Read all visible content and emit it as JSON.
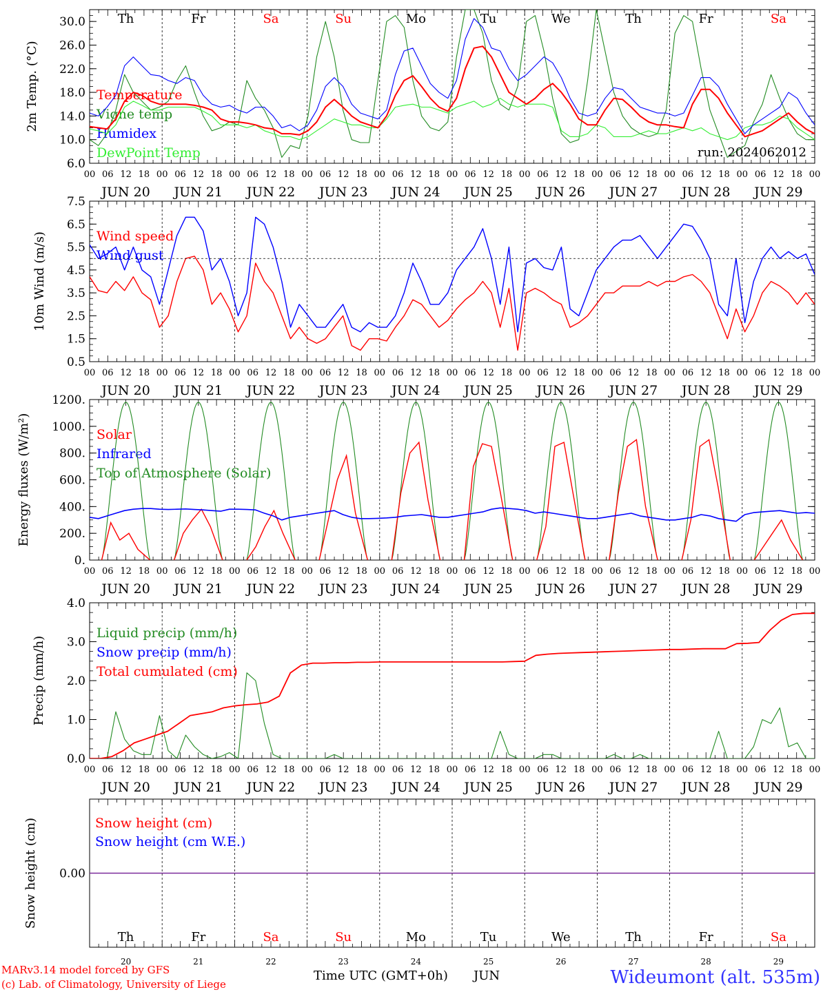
{
  "chart_data": [
    {
      "type": "line",
      "ylabel": "2m Temp. (°C)",
      "ylim": [
        6.0,
        32.0
      ],
      "yticks": [
        "6.0",
        "10.0",
        "14.0",
        "18.0",
        "22.0",
        "26.0",
        "30.0"
      ],
      "legend_placement": "left",
      "annotation": "run: 2024062012",
      "series": [
        {
          "name": "Temperature",
          "color": "#ff0000",
          "values": [
            12.2,
            12.0,
            11.8,
            13.5,
            16.5,
            18.0,
            17.5,
            16.5,
            16.0,
            16.0,
            16.0,
            16.0,
            15.8,
            15.5,
            15.0,
            13.5,
            13.0,
            13.0,
            12.8,
            12.5,
            12.0,
            11.8,
            11.0,
            11.0,
            10.8,
            11.5,
            13.0,
            15.5,
            16.8,
            15.5,
            14.0,
            13.0,
            12.5,
            12.0,
            14.0,
            17.5,
            20.0,
            20.8,
            19.0,
            17.0,
            15.5,
            14.8,
            17.0,
            22.0,
            25.5,
            25.8,
            24.0,
            21.0,
            18.0,
            17.0,
            16.0,
            17.0,
            18.5,
            19.5,
            18.0,
            16.0,
            13.5,
            12.5,
            12.5,
            15.0,
            17.0,
            16.8,
            15.5,
            14.0,
            13.0,
            12.5,
            12.5,
            12.2,
            12.0,
            16.0,
            18.5,
            18.5,
            17.0,
            14.5,
            12.5,
            10.5,
            11.0,
            11.5,
            12.5,
            13.5,
            14.5,
            13.0,
            11.8,
            11.0
          ]
        },
        {
          "name": "Vigne temp",
          "color": "#228b22",
          "values": [
            10.0,
            9.0,
            11.0,
            15.0,
            21.0,
            18.0,
            16.5,
            15.0,
            15.5,
            16.5,
            20.0,
            22.5,
            18.0,
            14.0,
            11.5,
            12.0,
            13.0,
            12.5,
            20.0,
            17.0,
            15.0,
            12.0,
            7.0,
            9.0,
            8.5,
            14.0,
            24.0,
            30.0,
            24.0,
            15.0,
            10.0,
            9.5,
            9.5,
            20.0,
            30.0,
            31.0,
            29.0,
            20.0,
            14.0,
            12.0,
            11.5,
            13.0,
            24.0,
            32.0,
            32.0,
            28.0,
            20.0,
            16.0,
            15.0,
            19.0,
            30.0,
            31.0,
            25.0,
            17.0,
            11.0,
            9.5,
            10.0,
            20.0,
            32.0,
            25.0,
            18.0,
            14.0,
            12.0,
            11.0,
            10.5,
            11.0,
            15.0,
            28.0,
            31.0,
            30.0,
            22.0,
            15.0,
            11.0,
            7.0,
            8.0,
            9.0,
            13.0,
            16.0,
            21.0,
            17.0,
            13.5,
            11.0,
            10.0,
            10.0
          ]
        },
        {
          "name": "Humidex",
          "color": "#0000ff",
          "values": [
            14.5,
            14.0,
            15.5,
            17.5,
            22.5,
            24.0,
            22.5,
            21.0,
            20.8,
            20.0,
            19.5,
            20.5,
            20.0,
            17.5,
            16.0,
            15.5,
            15.8,
            15.0,
            14.5,
            15.5,
            15.5,
            14.0,
            12.0,
            12.5,
            11.5,
            12.5,
            15.0,
            19.0,
            20.5,
            19.0,
            16.0,
            14.5,
            14.0,
            13.5,
            15.0,
            21.0,
            25.0,
            25.5,
            22.5,
            19.5,
            18.0,
            17.0,
            20.0,
            27.0,
            30.5,
            29.0,
            25.5,
            25.0,
            22.0,
            20.0,
            21.0,
            22.5,
            24.0,
            23.0,
            20.5,
            17.0,
            14.5,
            14.0,
            14.5,
            17.0,
            18.8,
            18.5,
            17.0,
            15.5,
            15.0,
            14.5,
            14.5,
            14.0,
            14.5,
            17.5,
            20.5,
            20.5,
            19.0,
            16.0,
            13.5,
            11.0,
            12.5,
            13.5,
            14.5,
            15.5,
            18.0,
            17.0,
            14.5,
            12.5
          ]
        },
        {
          "name": "DewPoint Temp",
          "color": "#33ee33",
          "values": [
            11.8,
            11.5,
            11.0,
            12.5,
            15.5,
            16.5,
            15.8,
            15.0,
            15.0,
            15.5,
            15.5,
            15.5,
            15.5,
            14.8,
            14.0,
            12.5,
            12.5,
            12.5,
            12.0,
            12.5,
            11.5,
            11.0,
            10.5,
            10.5,
            10.0,
            10.5,
            11.5,
            12.5,
            13.5,
            13.0,
            12.5,
            12.5,
            12.0,
            12.0,
            13.5,
            15.5,
            15.8,
            16.0,
            15.5,
            15.5,
            15.0,
            14.5,
            15.5,
            16.0,
            16.5,
            15.5,
            16.0,
            17.0,
            16.0,
            15.5,
            16.0,
            16.0,
            16.0,
            15.5,
            11.5,
            10.5,
            10.5,
            11.0,
            12.5,
            12.0,
            10.5,
            10.5,
            10.5,
            11.0,
            11.5,
            11.0,
            11.0,
            11.5,
            12.0,
            11.5,
            12.0,
            11.0,
            10.5,
            10.0,
            10.5,
            12.0,
            12.5,
            12.5,
            13.0,
            14.0,
            13.5,
            12.0,
            11.0,
            10.0
          ]
        }
      ]
    },
    {
      "type": "line",
      "ylabel": "10m Wind (m/s)",
      "ylim": [
        0.5,
        7.5
      ],
      "yticks": [
        "0.5",
        "1.5",
        "2.5",
        "3.5",
        "4.5",
        "5.5",
        "6.5",
        "7.5"
      ],
      "reference_line": 5.0,
      "legend_placement": "left",
      "series": [
        {
          "name": "Wind speed",
          "color": "#ff0000",
          "values": [
            4.2,
            3.6,
            3.5,
            4.0,
            3.6,
            4.2,
            3.5,
            3.2,
            2.0,
            2.5,
            4.0,
            5.0,
            5.1,
            4.5,
            3.0,
            3.5,
            2.8,
            1.8,
            2.5,
            4.8,
            4.0,
            3.5,
            2.5,
            1.5,
            2.0,
            1.5,
            1.3,
            1.5,
            2.0,
            2.5,
            1.2,
            1.0,
            1.5,
            1.5,
            1.4,
            2.0,
            2.5,
            3.2,
            3.0,
            2.5,
            2.0,
            2.3,
            2.8,
            3.2,
            3.5,
            4.0,
            3.5,
            2.0,
            3.7,
            1.0,
            3.5,
            3.7,
            3.5,
            3.2,
            3.0,
            2.0,
            2.2,
            2.5,
            3.0,
            3.5,
            3.5,
            3.8,
            3.8,
            3.8,
            4.0,
            3.8,
            4.0,
            4.0,
            4.2,
            4.3,
            4.0,
            3.5,
            2.5,
            1.5,
            2.8,
            1.8,
            2.5,
            3.5,
            4.0,
            3.8,
            3.5,
            3.0,
            3.5,
            3.0
          ]
        },
        {
          "name": "Wind gust",
          "color": "#0000ff",
          "values": [
            5.6,
            5.0,
            5.2,
            5.5,
            4.5,
            5.5,
            4.5,
            4.2,
            3.0,
            4.5,
            6.0,
            6.8,
            6.8,
            6.2,
            4.5,
            5.0,
            4.0,
            2.5,
            3.5,
            6.8,
            6.5,
            5.5,
            4.0,
            2.0,
            3.0,
            2.5,
            2.0,
            2.0,
            2.5,
            3.0,
            2.0,
            1.8,
            2.2,
            2.0,
            2.0,
            2.5,
            3.5,
            4.8,
            4.0,
            3.0,
            3.0,
            3.5,
            4.5,
            5.0,
            5.5,
            6.3,
            5.0,
            3.0,
            5.5,
            1.8,
            4.8,
            5.0,
            4.6,
            4.5,
            5.5,
            2.8,
            2.5,
            3.5,
            4.5,
            5.0,
            5.5,
            5.8,
            5.8,
            6.0,
            5.5,
            5.0,
            5.5,
            6.0,
            6.5,
            6.4,
            5.8,
            5.0,
            3.0,
            2.5,
            5.0,
            2.2,
            4.0,
            5.0,
            5.5,
            5.0,
            5.3,
            5.0,
            5.2,
            4.3
          ]
        }
      ]
    },
    {
      "type": "line",
      "ylabel": "Energy fluxes (W/m²)",
      "ylim": [
        0,
        1200
      ],
      "yticks": [
        "0.",
        "200.",
        "400.",
        "600.",
        "800.",
        "1000.",
        "1200."
      ],
      "legend_placement": "left",
      "series": [
        {
          "name": "Solar",
          "color": "#ff0000",
          "days": [
            [
              0,
              280,
              150,
              200,
              80,
              0
            ],
            [
              0,
              200,
              300,
              380,
              250,
              0
            ],
            [
              0,
              100,
              250,
              370,
              200,
              0
            ],
            [
              0,
              300,
              600,
              780,
              350,
              0
            ],
            [
              0,
              500,
              800,
              880,
              450,
              0
            ],
            [
              0,
              700,
              870,
              850,
              500,
              0
            ],
            [
              0,
              250,
              850,
              880,
              500,
              0
            ],
            [
              0,
              500,
              850,
              900,
              400,
              0
            ],
            [
              0,
              300,
              850,
              900,
              550,
              0
            ],
            [
              0,
              100,
              200,
              300,
              150,
              0
            ]
          ]
        },
        {
          "name": "Infrared",
          "color": "#0000ff",
          "values": [
            320,
            310,
            330,
            350,
            370,
            380,
            385,
            385,
            380,
            378,
            380,
            382,
            378,
            375,
            370,
            365,
            380,
            380,
            378,
            375,
            350,
            330,
            300,
            320,
            330,
            340,
            350,
            360,
            370,
            340,
            320,
            310,
            310,
            312,
            315,
            320,
            330,
            335,
            340,
            330,
            320,
            320,
            330,
            340,
            350,
            360,
            380,
            390,
            385,
            380,
            370,
            350,
            360,
            350,
            340,
            330,
            320,
            310,
            310,
            320,
            330,
            340,
            350,
            330,
            320,
            310,
            300,
            300,
            310,
            320,
            340,
            330,
            310,
            300,
            290,
            340,
            355,
            360,
            365,
            370,
            360,
            350,
            355,
            350
          ]
        },
        {
          "name": "Top of Atmosphere (Solar)",
          "color": "#228b22",
          "peak": 1180
        }
      ]
    },
    {
      "type": "line",
      "ylabel": "Precip (mm/h)",
      "ylim": [
        0.0,
        4.0
      ],
      "yticks": [
        "0.0",
        "1.0",
        "2.0",
        "3.0",
        "4.0"
      ],
      "legend_placement": "left",
      "series": [
        {
          "name": "Liquid precip (mm/h)",
          "color": "#228b22",
          "values": [
            0,
            0,
            0,
            1.2,
            0.5,
            0.2,
            0.1,
            0.1,
            1.1,
            0.2,
            0,
            0.6,
            0.3,
            0.1,
            0,
            0.05,
            0.15,
            0,
            2.2,
            2.0,
            0.9,
            0.1,
            0,
            0,
            0,
            0,
            0,
            0,
            0.1,
            0,
            0,
            0,
            0,
            0,
            0,
            0,
            0,
            0,
            0,
            0,
            0,
            0,
            0,
            0,
            0,
            0,
            0,
            0.7,
            0.1,
            0,
            0,
            0,
            0.1,
            0.1,
            0,
            0,
            0,
            0,
            0,
            0,
            0.1,
            0,
            0,
            0.1,
            0,
            0,
            0,
            0,
            0,
            0,
            0,
            0,
            0.7,
            0,
            0,
            0,
            0.3,
            1.0,
            0.9,
            1.3,
            0.3,
            0.4,
            0,
            0
          ]
        },
        {
          "name": "Snow precip (mm/h)",
          "color": "#0000ff",
          "values": []
        },
        {
          "name": "Total cumulated (cm)",
          "color": "#ff0000",
          "values": [
            0,
            0,
            0.05,
            0.2,
            0.4,
            0.5,
            0.6,
            0.7,
            0.9,
            1.1,
            1.15,
            1.2,
            1.3,
            1.35,
            1.38,
            1.4,
            1.45,
            1.6,
            2.2,
            2.4,
            2.45,
            2.45,
            2.46,
            2.46,
            2.47,
            2.47,
            2.48,
            2.48,
            2.48,
            2.48,
            2.48,
            2.48,
            2.48,
            2.48,
            2.48,
            2.48,
            2.48,
            2.48,
            2.49,
            2.5,
            2.65,
            2.68,
            2.7,
            2.71,
            2.72,
            2.73,
            2.74,
            2.75,
            2.76,
            2.77,
            2.78,
            2.79,
            2.8,
            2.8,
            2.81,
            2.82,
            2.82,
            2.82,
            2.95,
            2.96,
            2.98,
            3.3,
            3.55,
            3.7,
            3.73,
            3.73
          ]
        }
      ]
    },
    {
      "type": "line",
      "ylabel": "Snow height (cm)",
      "yticks": [
        "0.00"
      ],
      "legend_placement": "left",
      "series": [
        {
          "name": "Snow height (cm)",
          "color": "#ff0000",
          "values": [
            0
          ]
        },
        {
          "name": "Snow height (cm W.E.)",
          "color": "#0000ff",
          "values": [
            0
          ]
        }
      ]
    }
  ],
  "x_axis": {
    "hour_ticks": [
      "00",
      "06",
      "12",
      "18"
    ],
    "date_labels": [
      "JUN 20",
      "JUN 21",
      "JUN 22",
      "JUN 23",
      "JUN 24",
      "JUN 25",
      "JUN 26",
      "JUN 27",
      "JUN 28",
      "JUN 29"
    ],
    "day_numbers": [
      "20",
      "21",
      "22",
      "23",
      "24",
      "25",
      "26",
      "27",
      "28",
      "29"
    ],
    "weekdays": [
      "Th",
      "Fr",
      "Sa",
      "Su",
      "Mo",
      "Tu",
      "We",
      "Th",
      "Fr",
      "Sa"
    ],
    "weekday_colors": [
      "#000000",
      "#000000",
      "#ff0000",
      "#ff0000",
      "#000000",
      "#000000",
      "#000000",
      "#000000",
      "#000000",
      "#ff0000"
    ],
    "bottom_label": "Time UTC (GMT+0h)",
    "month_label": "JUN"
  },
  "footer": {
    "credit_line1": "MARv3.14 model forced by GFS",
    "credit_line2": "(c) Lab. of Climatology, University of Liege",
    "station": "Wideumont (alt. 535m)"
  }
}
